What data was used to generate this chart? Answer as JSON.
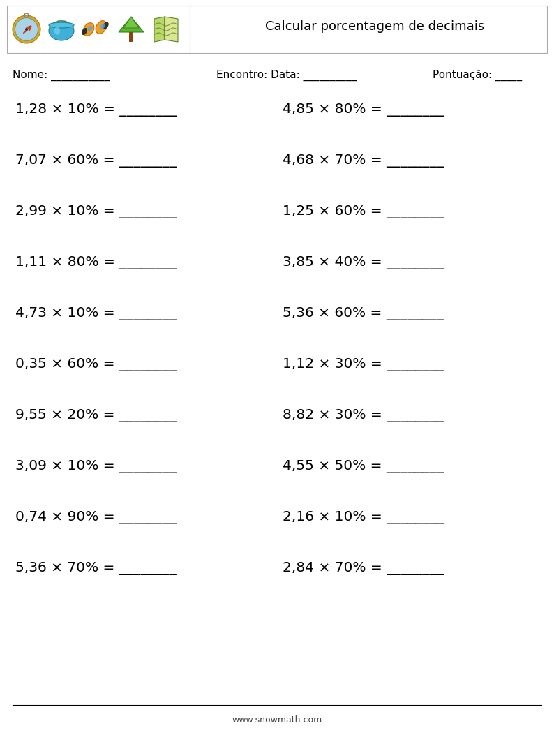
{
  "title": "Calcular porcentagem de decimais",
  "nome_label": "Nome: ___________",
  "encontro_label": "Encontro: Data: __________",
  "pontuacao_label": "Pontuação: _____",
  "problems_left": [
    "1,28 × 10% = ________",
    "7,07 × 60% = ________",
    "2,99 × 10% = ________",
    "1,11 × 80% = ________",
    "4,73 × 10% = ________",
    "0,35 × 60% = ________",
    "9,55 × 20% = ________",
    "3,09 × 10% = ________",
    "0,74 × 90% = ________",
    "5,36 × 70% = ________"
  ],
  "problems_right": [
    "4,85 × 80% = ________",
    "4,68 × 70% = ________",
    "1,25 × 60% = ________",
    "3,85 × 40% = ________",
    "5,36 × 60% = ________",
    "1,12 × 30% = ________",
    "8,82 × 30% = ________",
    "4,55 × 50% = ________",
    "2,16 × 10% = ________",
    "2,84 × 70% = ________"
  ],
  "footer_text": "www.snowmath.com",
  "bg_color": "#ffffff",
  "text_color": "#000000",
  "box_edge_color": "#aaaaaa",
  "font_size_problems": 14.5,
  "font_size_header": 11,
  "font_size_title": 13,
  "font_size_footer": 9
}
